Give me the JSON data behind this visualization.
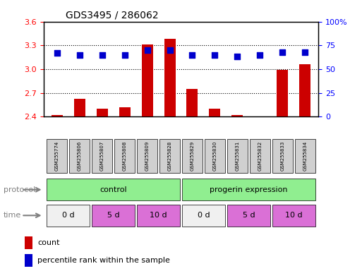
{
  "title": "GDS3495 / 286062",
  "samples": [
    "GSM255774",
    "GSM255806",
    "GSM255807",
    "GSM255808",
    "GSM255809",
    "GSM255828",
    "GSM255829",
    "GSM255830",
    "GSM255831",
    "GSM255832",
    "GSM255833",
    "GSM255834"
  ],
  "red_values": [
    2.42,
    2.62,
    2.5,
    2.52,
    3.31,
    3.38,
    2.75,
    2.5,
    2.42,
    2.4,
    2.99,
    3.06
  ],
  "blue_values": [
    67,
    65,
    65,
    65,
    70,
    70,
    65,
    65,
    63,
    65,
    68,
    68
  ],
  "ylim_left": [
    2.4,
    3.6
  ],
  "ylim_right": [
    0,
    100
  ],
  "yticks_left": [
    2.4,
    2.7,
    3.0,
    3.3,
    3.6
  ],
  "yticks_right": [
    0,
    25,
    50,
    75,
    100
  ],
  "hlines": [
    2.7,
    3.0,
    3.3
  ],
  "protocol_groups": [
    {
      "label": "control",
      "start": 0,
      "end": 5,
      "color": "#90ee90"
    },
    {
      "label": "progerin expression",
      "start": 6,
      "end": 11,
      "color": "#90ee90"
    }
  ],
  "time_groups": [
    {
      "label": "0 d",
      "start": 0,
      "end": 1,
      "color": "#f0f0f0"
    },
    {
      "label": "5 d",
      "start": 2,
      "end": 3,
      "color": "#da70d6"
    },
    {
      "label": "10 d",
      "start": 4,
      "end": 5,
      "color": "#da70d6"
    },
    {
      "label": "0 d",
      "start": 6,
      "end": 7,
      "color": "#f0f0f0"
    },
    {
      "label": "5 d",
      "start": 8,
      "end": 9,
      "color": "#da70d6"
    },
    {
      "label": "10 d",
      "start": 10,
      "end": 11,
      "color": "#da70d6"
    }
  ],
  "bar_color": "#cc0000",
  "dot_color": "#0000cc",
  "bar_width": 0.5,
  "background_color": "#ffffff",
  "grid_color": "#000000",
  "sample_box_color": "#d0d0d0",
  "legend_items": [
    {
      "color": "#cc0000",
      "label": "count"
    },
    {
      "color": "#0000cc",
      "label": "percentile rank within the sample"
    }
  ]
}
